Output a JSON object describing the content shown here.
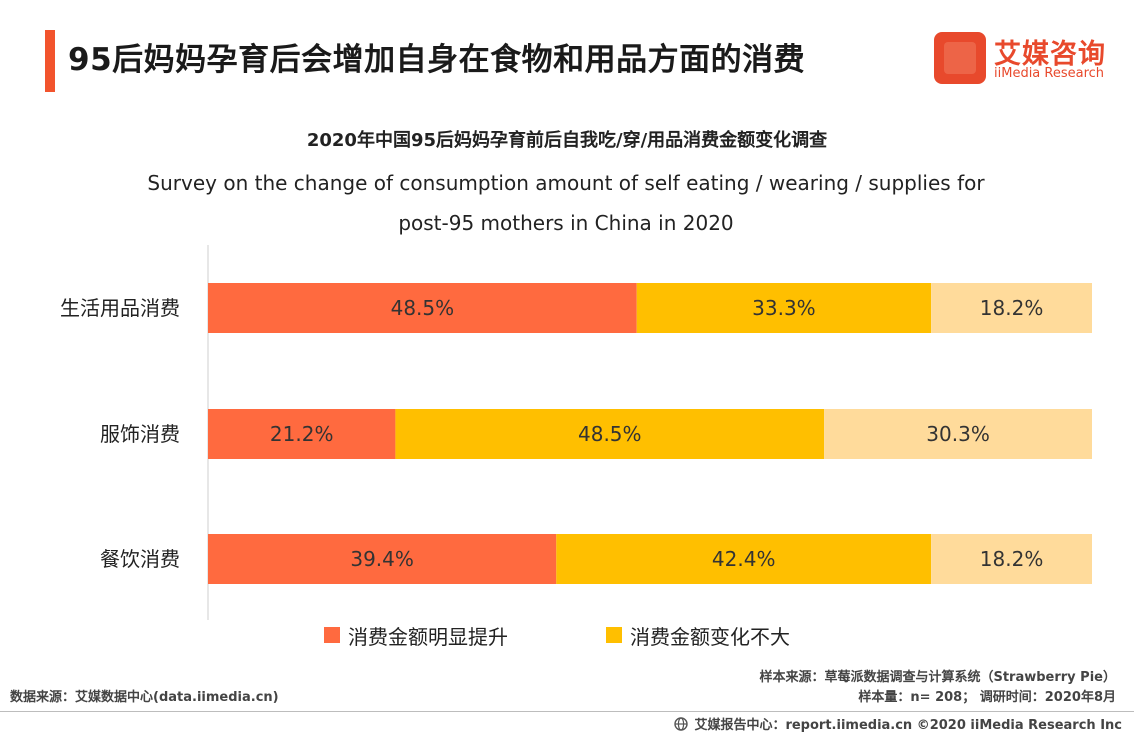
{
  "header": {
    "title": "95后妈妈孕育后会增加自身在食物和用品方面的消费",
    "logo_cn": "艾媒咨询",
    "logo_en": "iiMedia Research",
    "accent_color": "#f2542d"
  },
  "chart_data": {
    "type": "bar",
    "orientation": "horizontal",
    "stacked": true,
    "percent": true,
    "title": "2020年中国95后妈妈孕育前后自我吃/穿/用品消费金额变化调查",
    "subtitle": "Survey on the change of consumption amount of self eating / wearing / supplies for post-95 mothers in China in 2020",
    "categories": [
      "生活用品消费",
      "服饰消费",
      "餐饮消费"
    ],
    "series": [
      {
        "name": "消费金额明显提升",
        "color": "#ff6a3f",
        "values": [
          48.5,
          21.2,
          39.4
        ],
        "labels": [
          "48.5%",
          "21.2%",
          "39.4%"
        ]
      },
      {
        "name": "消费金额变化不大",
        "color": "#ffbf00",
        "values": [
          33.3,
          48.5,
          42.4
        ],
        "labels": [
          "33.3%",
          "48.5%",
          "42.4%"
        ]
      },
      {
        "name": "",
        "color": "#ffdb9b",
        "values": [
          18.2,
          30.3,
          18.2
        ],
        "labels": [
          "18.2%",
          "30.3%",
          "18.2%"
        ]
      }
    ],
    "xlim": [
      0,
      100
    ],
    "grid": false,
    "legend": "bottom"
  },
  "footer": {
    "source_left": "数据来源：艾媒数据中心(data.iimedia.cn)",
    "sample_source": "样本来源：草莓派数据调查与计算系统（Strawberry  Pie）",
    "sample_size": "样本量：n= 208；  调研时间：2020年8月",
    "report_center": "艾媒报告中心：report.iimedia.cn   ©2020  iiMedia Research  Inc"
  }
}
